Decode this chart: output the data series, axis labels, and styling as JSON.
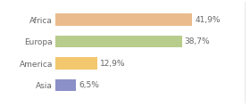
{
  "categories": [
    "Asia",
    "America",
    "Europa",
    "Africa"
  ],
  "values": [
    6.5,
    12.9,
    38.7,
    41.9
  ],
  "labels": [
    "6,5%",
    "12,9%",
    "38,7%",
    "41,9%"
  ],
  "bar_colors": [
    "#8b90c8",
    "#f2c76e",
    "#b8cc8c",
    "#eabb8c"
  ],
  "background_color": "#ffffff",
  "bar_height": 0.55,
  "xlim": [
    0,
    58
  ],
  "label_fontsize": 6.5,
  "tick_fontsize": 6.5,
  "text_color": "#666666"
}
